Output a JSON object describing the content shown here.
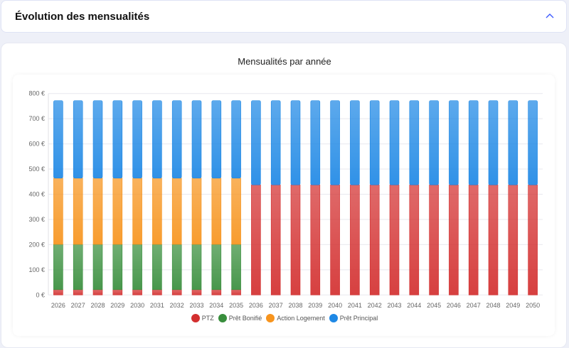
{
  "header": {
    "title": "Évolution des mensualités",
    "toggle_icon": "chevron-up-icon"
  },
  "chart_data": {
    "type": "bar",
    "stacked": true,
    "title": "Mensualités par année",
    "xlabel": "",
    "ylabel": "",
    "ylim": [
      0,
      800
    ],
    "yticks": [
      "0 €",
      "100 €",
      "200 €",
      "300 €",
      "400 €",
      "500 €",
      "600 €",
      "700 €",
      "800 €"
    ],
    "grid": true,
    "legend_position": "bottom",
    "categories": [
      "2026",
      "2027",
      "2028",
      "2029",
      "2030",
      "2031",
      "2032",
      "2033",
      "2034",
      "2035",
      "2036",
      "2037",
      "2038",
      "2039",
      "2040",
      "2041",
      "2042",
      "2043",
      "2044",
      "2045",
      "2046",
      "2047",
      "2048",
      "2049",
      "2050"
    ],
    "series": [
      {
        "name": "PTZ",
        "color": "#d32f2f",
        "values": [
          21,
          21,
          21,
          21,
          21,
          21,
          21,
          21,
          21,
          21,
          437,
          437,
          437,
          437,
          437,
          437,
          437,
          437,
          437,
          437,
          437,
          437,
          437,
          437,
          437
        ]
      },
      {
        "name": "Prêt Bonifié",
        "color": "#388e3c",
        "values": [
          180,
          180,
          180,
          180,
          180,
          180,
          180,
          180,
          180,
          180,
          0,
          0,
          0,
          0,
          0,
          0,
          0,
          0,
          0,
          0,
          0,
          0,
          0,
          0,
          0
        ]
      },
      {
        "name": "Action Logement",
        "color": "#f7941d",
        "values": [
          263,
          263,
          263,
          263,
          263,
          263,
          263,
          263,
          263,
          263,
          0,
          0,
          0,
          0,
          0,
          0,
          0,
          0,
          0,
          0,
          0,
          0,
          0,
          0,
          0
        ]
      },
      {
        "name": "Prêt Principal",
        "color": "#1e88e5",
        "values": [
          308,
          308,
          308,
          308,
          308,
          308,
          308,
          308,
          308,
          308,
          335,
          335,
          335,
          335,
          335,
          335,
          335,
          335,
          335,
          335,
          335,
          335,
          335,
          335,
          335
        ]
      }
    ]
  }
}
